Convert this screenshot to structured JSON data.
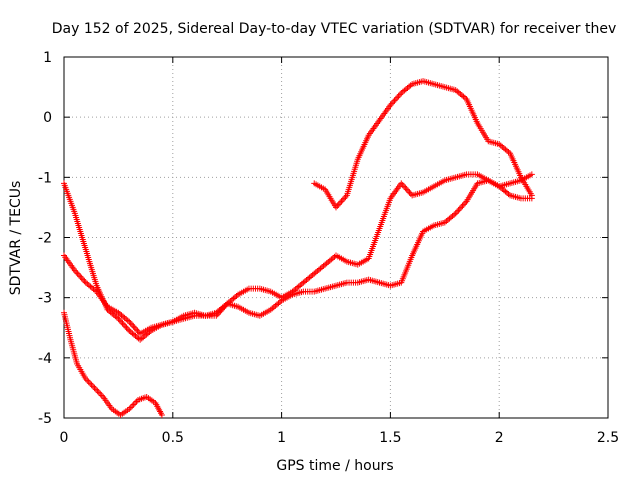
{
  "chart_data": {
    "type": "scatter",
    "title": "Day 152 of 2025, Sidereal Day-to-day VTEC variation (SDTVAR) for receiver thev",
    "xlabel": "GPS time / hours",
    "ylabel": "SDTVAR / TECUs",
    "xlim": [
      0,
      2.5
    ],
    "ylim": [
      -5,
      1
    ],
    "xticks": [
      "0",
      "0.5",
      "1",
      "1.5",
      "2",
      "2.5"
    ],
    "yticks": [
      "1",
      "0",
      "-1",
      "-2",
      "-3",
      "-4",
      "-5"
    ],
    "grid": true,
    "marker": "+",
    "series": [
      {
        "name": "track-1",
        "color": "#ff0000",
        "x": [
          0.0,
          0.05,
          0.1,
          0.15,
          0.2,
          0.25,
          0.3,
          0.35,
          0.4,
          0.45,
          0.5,
          0.55,
          0.6,
          0.65,
          0.7,
          0.75,
          0.8,
          0.85,
          0.9,
          0.95,
          1.0,
          1.05,
          1.1,
          1.15,
          1.2,
          1.25,
          1.3,
          1.35,
          1.4,
          1.45,
          1.5,
          1.55,
          1.6,
          1.65,
          1.7,
          1.75,
          1.8,
          1.85,
          1.9,
          1.95,
          2.0,
          2.05,
          2.1,
          2.15
        ],
        "y": [
          -1.1,
          -1.6,
          -2.2,
          -2.8,
          -3.2,
          -3.35,
          -3.55,
          -3.7,
          -3.55,
          -3.45,
          -3.4,
          -3.3,
          -3.25,
          -3.3,
          -3.3,
          -3.1,
          -2.95,
          -2.85,
          -2.85,
          -2.9,
          -3.0,
          -2.9,
          -2.75,
          -2.6,
          -2.45,
          -2.3,
          -2.4,
          -2.45,
          -2.35,
          -1.85,
          -1.35,
          -1.1,
          -1.3,
          -1.25,
          -1.15,
          -1.05,
          -1.0,
          -0.95,
          -0.95,
          -1.05,
          -1.15,
          -1.1,
          -1.05,
          -0.95
        ]
      },
      {
        "name": "track-2",
        "color": "#ff0000",
        "x": [
          0.0,
          0.05,
          0.1,
          0.15,
          0.2,
          0.25,
          0.3,
          0.35,
          0.4,
          0.45,
          0.5,
          0.55,
          0.6,
          0.65,
          0.7,
          0.75,
          0.8,
          0.85,
          0.9,
          0.95,
          1.0,
          1.05,
          1.1,
          1.15,
          1.2,
          1.25,
          1.3,
          1.35,
          1.4,
          1.45,
          1.5,
          1.55,
          1.6,
          1.65,
          1.7,
          1.75,
          1.8,
          1.85,
          1.9,
          1.95,
          2.0,
          2.05,
          2.1,
          2.15
        ],
        "y": [
          -2.3,
          -2.55,
          -2.75,
          -2.9,
          -3.15,
          -3.25,
          -3.4,
          -3.6,
          -3.5,
          -3.45,
          -3.4,
          -3.35,
          -3.3,
          -3.3,
          -3.25,
          -3.1,
          -3.15,
          -3.25,
          -3.3,
          -3.2,
          -3.05,
          -2.95,
          -2.9,
          -2.9,
          -2.85,
          -2.8,
          -2.75,
          -2.75,
          -2.7,
          -2.75,
          -2.8,
          -2.75,
          -2.3,
          -1.9,
          -1.8,
          -1.75,
          -1.6,
          -1.4,
          -1.1,
          -1.05,
          -1.15,
          -1.3,
          -1.35,
          -1.35
        ]
      },
      {
        "name": "track-3",
        "color": "#ff0000",
        "x": [
          0.0,
          0.03,
          0.06,
          0.1,
          0.14,
          0.18,
          0.22,
          0.26,
          0.3,
          0.34,
          0.38,
          0.42,
          0.45
        ],
        "y": [
          -3.25,
          -3.7,
          -4.1,
          -4.35,
          -4.5,
          -4.65,
          -4.85,
          -4.95,
          -4.85,
          -4.7,
          -4.65,
          -4.75,
          -4.95
        ]
      },
      {
        "name": "track-4",
        "color": "#ff0000",
        "x": [
          1.15,
          1.2,
          1.25,
          1.3,
          1.35,
          1.4,
          1.45,
          1.5,
          1.55,
          1.6,
          1.65,
          1.7,
          1.75,
          1.8,
          1.85,
          1.9,
          1.95,
          2.0,
          2.05,
          2.1,
          2.15
        ],
        "y": [
          -1.1,
          -1.2,
          -1.5,
          -1.3,
          -0.7,
          -0.3,
          -0.05,
          0.2,
          0.4,
          0.55,
          0.6,
          0.55,
          0.5,
          0.45,
          0.3,
          -0.1,
          -0.4,
          -0.45,
          -0.6,
          -1.0,
          -1.3
        ]
      }
    ]
  }
}
